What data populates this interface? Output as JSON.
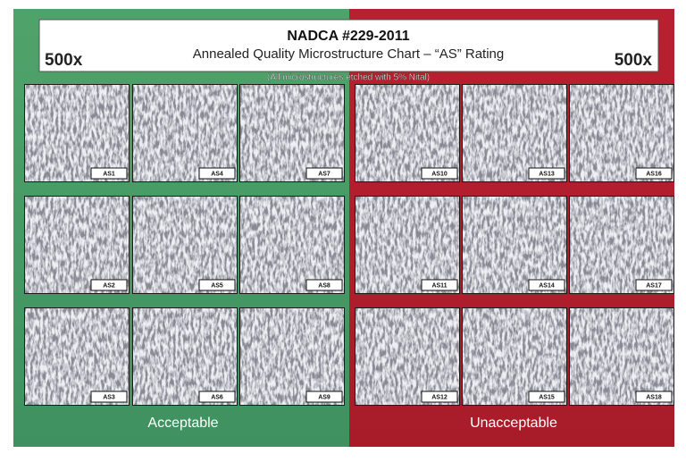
{
  "header": {
    "title": "NADCA #229-2011",
    "subtitle": "Annealed Quality Microstructure Chart – “AS” Rating",
    "magnification_left": "500x",
    "magnification_right": "500x",
    "note": "(All microstructures etched with 5% Nital)"
  },
  "groups": [
    {
      "label": "Acceptable",
      "rows": [
        [
          "AS1",
          "AS4",
          "AS7"
        ],
        [
          "AS2",
          "AS5",
          "AS8"
        ],
        [
          "AS3",
          "AS6",
          "AS9"
        ]
      ]
    },
    {
      "label": "Unacceptable",
      "rows": [
        [
          "AS10",
          "AS13",
          "AS16"
        ],
        [
          "AS11",
          "AS14",
          "AS17"
        ],
        [
          "AS12",
          "AS15",
          "AS18"
        ]
      ]
    }
  ]
}
